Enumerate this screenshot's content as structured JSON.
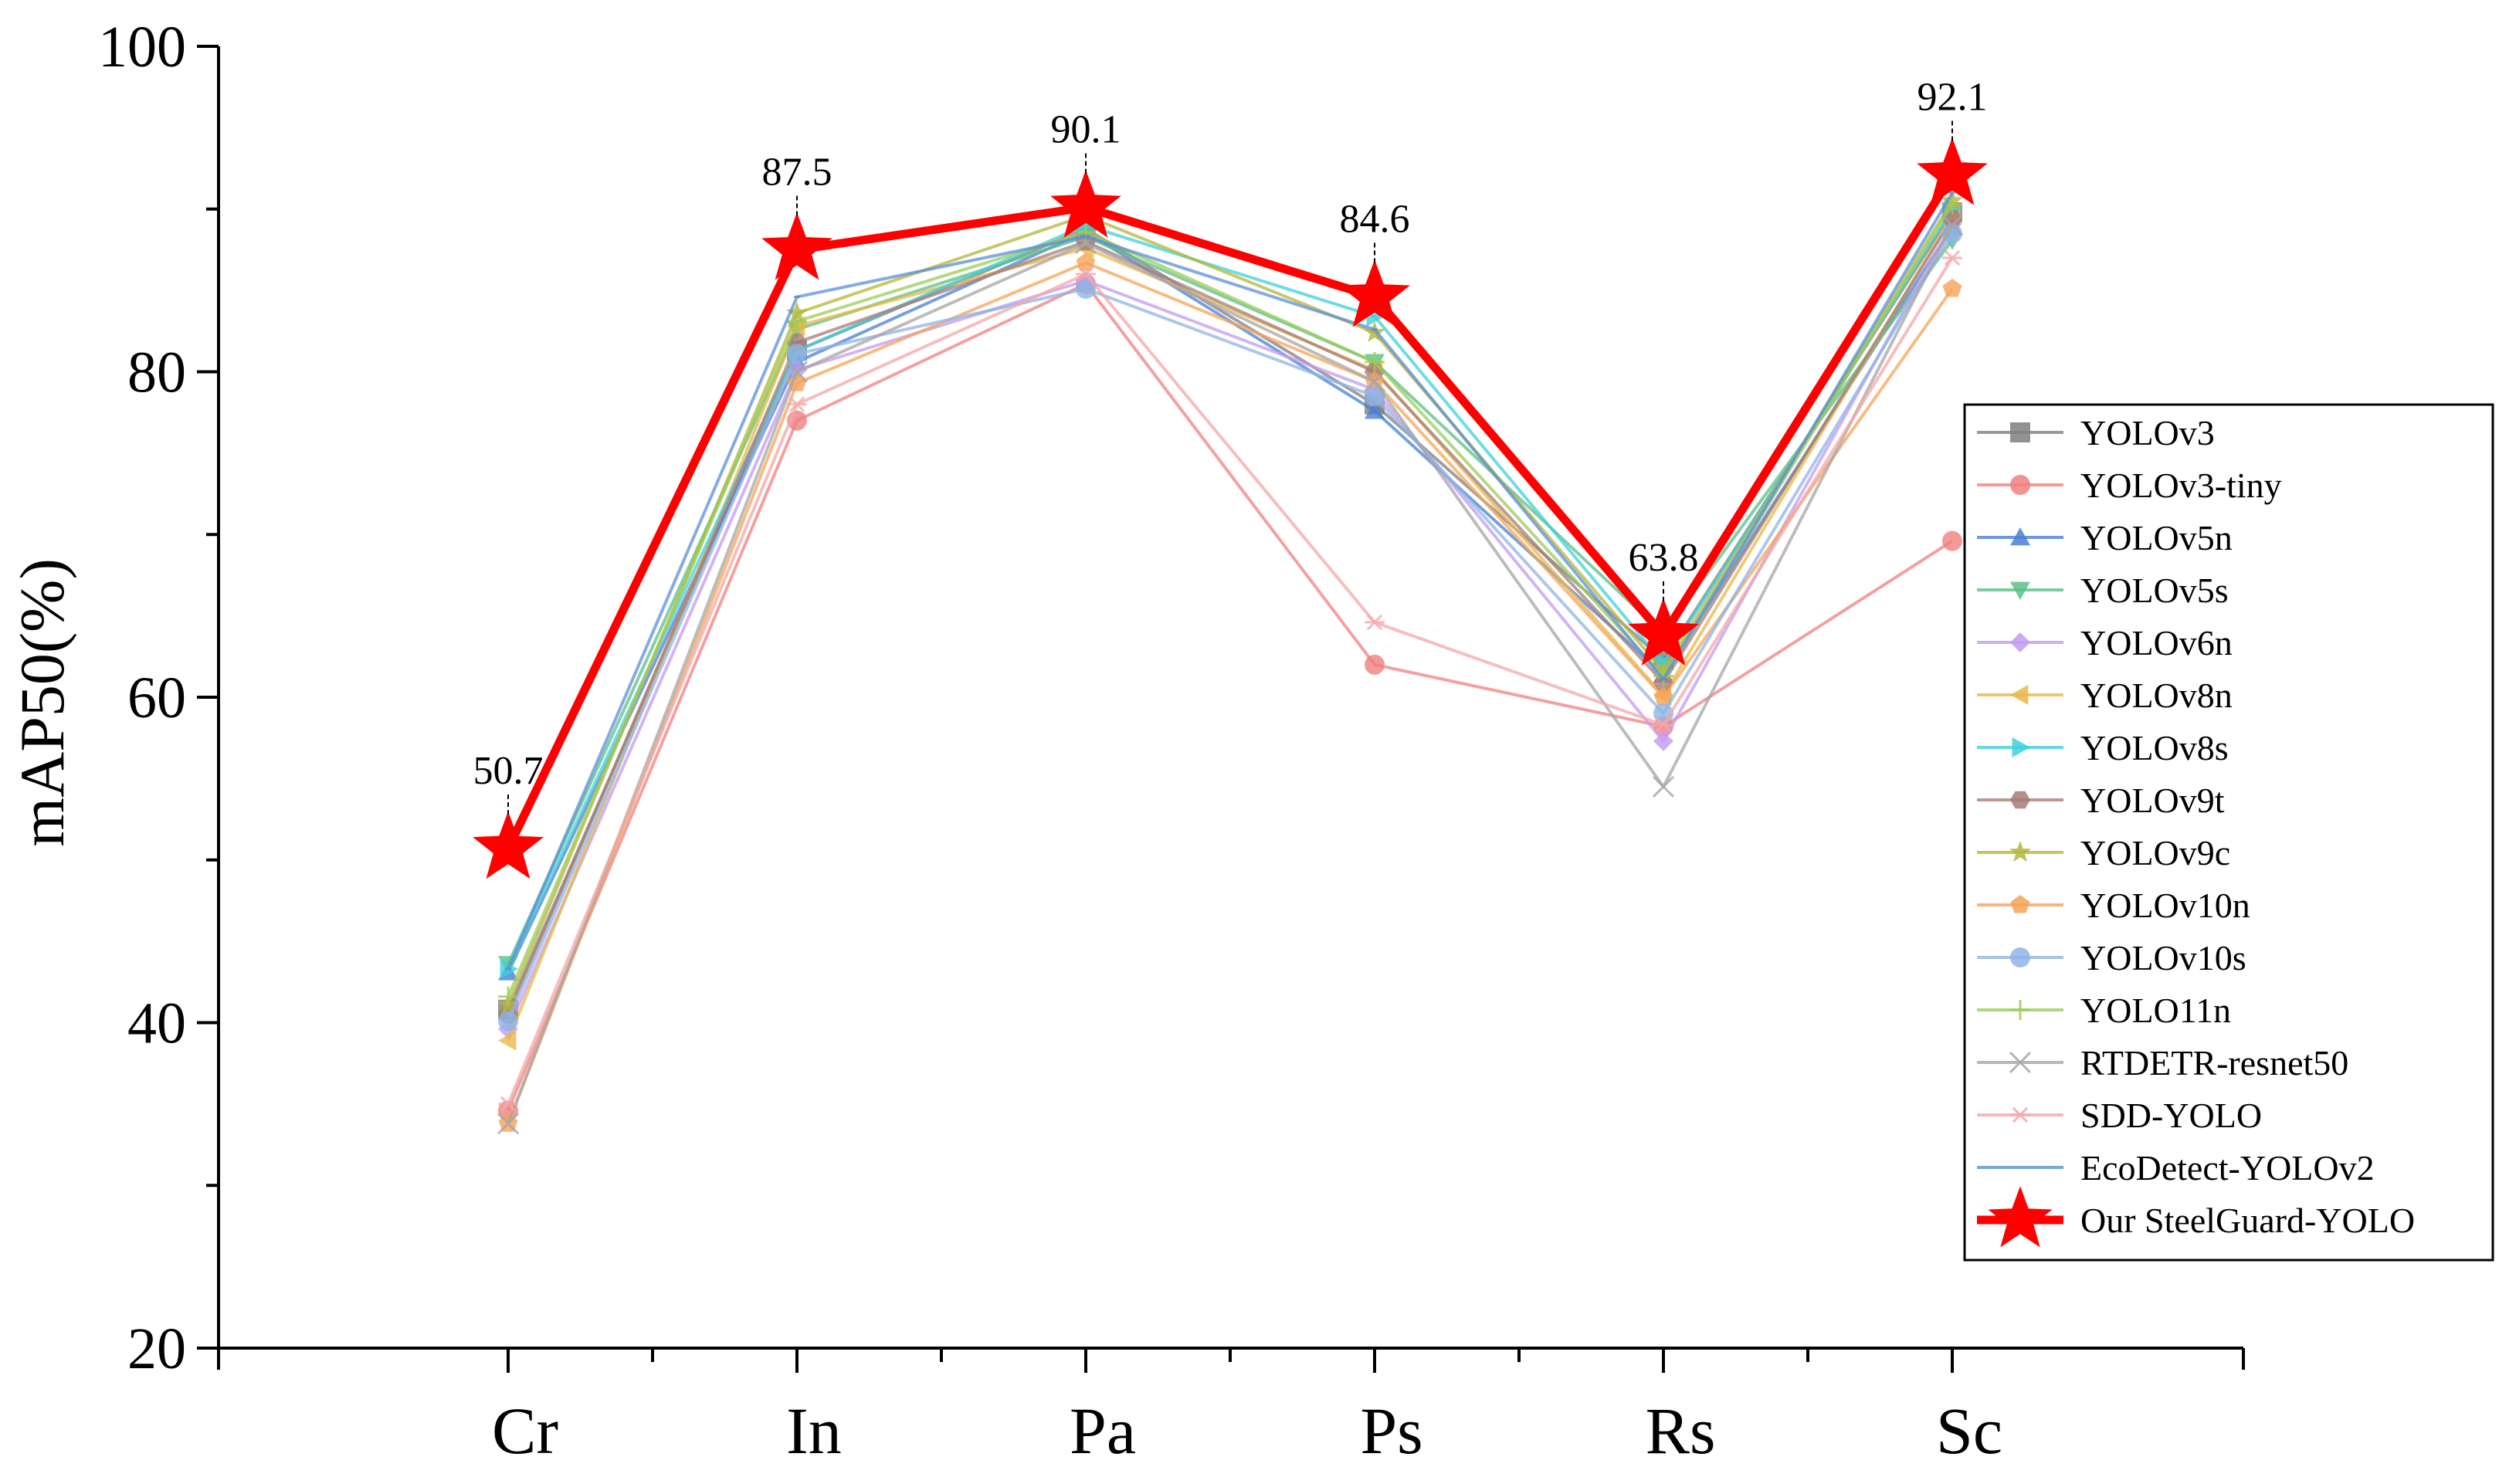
{
  "chart_data": {
    "type": "line",
    "title": "",
    "xlabel": "",
    "ylabel": "mAP50(%)",
    "categories": [
      "Cr",
      "In",
      "Pa",
      "Ps",
      "Rs",
      "Sc"
    ],
    "ylim": [
      20,
      100
    ],
    "yticks": [
      "20",
      "40",
      "60",
      "80",
      "100"
    ],
    "legend_position": "right",
    "series": [
      {
        "name": "YOLOv3",
        "color": "#7f7f7f",
        "marker": "square",
        "values": [
          40.8,
          81.3,
          88.8,
          78.0,
          62.3,
          89.8
        ]
      },
      {
        "name": "YOLOv3-tiny",
        "color": "#f08080",
        "marker": "circle",
        "values": [
          34.6,
          77.0,
          85.4,
          62.0,
          58.2,
          69.6
        ]
      },
      {
        "name": "YOLOv5n",
        "color": "#4a7fd4",
        "marker": "triangle-up",
        "values": [
          43.1,
          80.6,
          88.6,
          77.6,
          61.4,
          88.9
        ]
      },
      {
        "name": "YOLOv5s",
        "color": "#5bbf85",
        "marker": "triangle-down",
        "values": [
          43.6,
          82.6,
          88.3,
          80.6,
          63.9,
          88.1
        ]
      },
      {
        "name": "YOLOv6n",
        "color": "#c39bf0",
        "marker": "diamond",
        "values": [
          39.6,
          80.1,
          85.6,
          78.9,
          57.3,
          89.1
        ]
      },
      {
        "name": "YOLOv8n",
        "color": "#e8b84a",
        "marker": "triangle-left",
        "values": [
          38.9,
          82.8,
          87.6,
          80.1,
          60.1,
          89.6
        ]
      },
      {
        "name": "YOLOv8s",
        "color": "#3ed0dc",
        "marker": "triangle-right",
        "values": [
          43.3,
          81.3,
          89.0,
          83.4,
          62.1,
          90.0
        ]
      },
      {
        "name": "YOLOv9t",
        "color": "#a67c76",
        "marker": "hexagon",
        "values": [
          40.5,
          81.8,
          88.0,
          80.0,
          60.9,
          89.4
        ]
      },
      {
        "name": "YOLOv9c",
        "color": "#b5b53a",
        "marker": "star",
        "values": [
          41.1,
          83.6,
          89.6,
          82.4,
          61.6,
          90.5
        ]
      },
      {
        "name": "YOLOv10n",
        "color": "#f5a458",
        "marker": "pentagon",
        "values": [
          33.8,
          79.3,
          86.7,
          79.4,
          60.0,
          85.1
        ]
      },
      {
        "name": "YOLOv10s",
        "color": "#8fb4e6",
        "marker": "circle",
        "values": [
          40.1,
          81.1,
          85.1,
          78.5,
          59.0,
          88.5
        ]
      },
      {
        "name": "YOLO11n",
        "color": "#9ccc5a",
        "marker": "plus",
        "values": [
          41.6,
          83.1,
          88.6,
          80.6,
          61.3,
          90.3
        ]
      },
      {
        "name": "RTDETR-resnet50",
        "color": "#a6a6a6",
        "marker": "cross",
        "values": [
          33.8,
          80.0,
          87.9,
          79.4,
          54.5,
          89.0
        ]
      },
      {
        "name": "SDD-YOLO",
        "color": "#f4a7a7",
        "marker": "asterisk",
        "values": [
          35.0,
          78.0,
          86.0,
          64.6,
          58.3,
          87.0
        ]
      },
      {
        "name": "EcoDetect-YOLOv2",
        "color": "#5b8fd8",
        "marker": "line",
        "values": [
          43.3,
          84.6,
          88.3,
          82.6,
          61.1,
          91.0
        ]
      },
      {
        "name": "Our SteelGuard-YOLO",
        "color": "#ff0000",
        "marker": "star",
        "highlight": true,
        "values": [
          50.7,
          87.5,
          90.1,
          84.6,
          63.8,
          92.1
        ]
      }
    ],
    "annotations": [
      {
        "category": "Cr",
        "value": 50.7,
        "text": "50.7"
      },
      {
        "category": "In",
        "value": 87.5,
        "text": "87.5"
      },
      {
        "category": "Pa",
        "value": 90.1,
        "text": "90.1"
      },
      {
        "category": "Ps",
        "value": 84.6,
        "text": "84.6"
      },
      {
        "category": "Rs",
        "value": 63.8,
        "text": "63.8"
      },
      {
        "category": "Sc",
        "value": 92.1,
        "text": "92.1"
      }
    ]
  }
}
